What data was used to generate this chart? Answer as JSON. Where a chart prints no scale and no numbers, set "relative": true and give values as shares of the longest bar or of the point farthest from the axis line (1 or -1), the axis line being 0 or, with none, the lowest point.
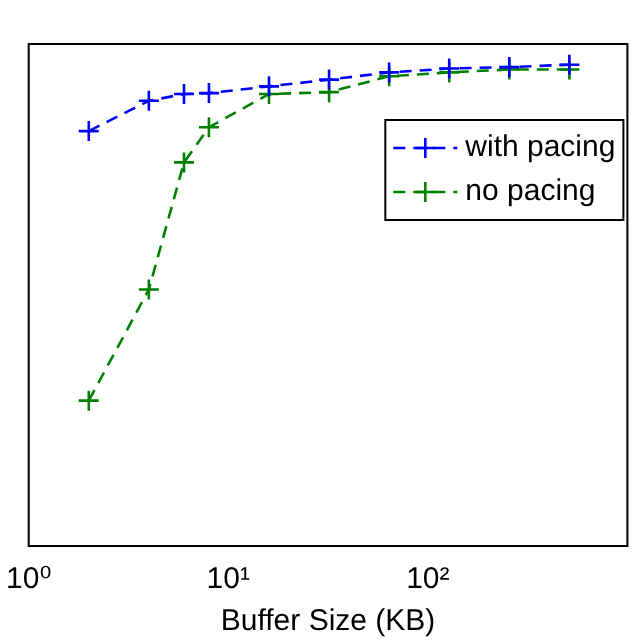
{
  "chart_data": {
    "type": "line",
    "xlabel": "Buffer Size (KB)",
    "log": "x",
    "relative": true,
    "xlim": [
      1,
      1000
    ],
    "xticks": [
      {
        "value": 1,
        "label": "10⁰"
      },
      {
        "value": 10,
        "label": "10¹"
      },
      {
        "value": 100,
        "label": "10²"
      }
    ],
    "x": [
      2,
      4,
      6,
      8,
      16,
      32,
      64,
      128,
      256,
      512
    ],
    "series": [
      {
        "name": "with pacing",
        "color": "#0000ff",
        "marker": "cross",
        "line_style": "dashed",
        "values": [
          0.862,
          0.925,
          0.939,
          0.941,
          0.955,
          0.969,
          0.984,
          0.992,
          0.995,
          1
        ]
      },
      {
        "name": "no pacing",
        "color": "#008000",
        "marker": "cross",
        "line_style": "dashed",
        "values": [
          0.302,
          0.533,
          0.797,
          0.87,
          0.939,
          0.943,
          0.976,
          0.984,
          0.99,
          0.99
        ]
      }
    ],
    "grid": false,
    "legend": "top right"
  }
}
